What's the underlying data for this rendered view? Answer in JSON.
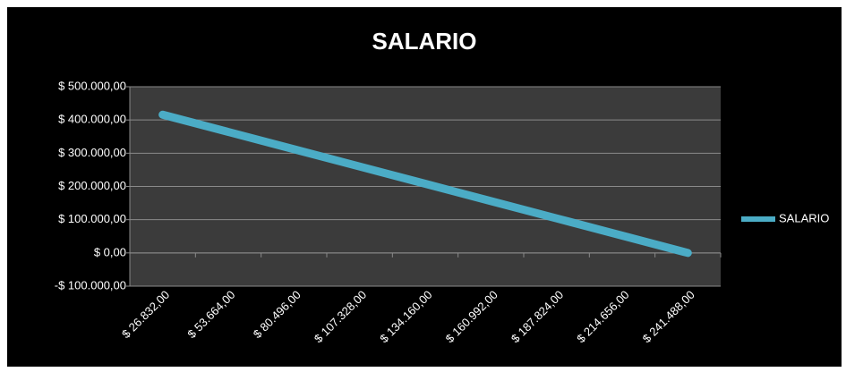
{
  "chart_data": {
    "type": "line",
    "title": "SALARIO",
    "categories": [
      "$ 26.832,00",
      "$ 53.664,00",
      "$ 80.496,00",
      "$ 107.328,00",
      "$ 134.160,00",
      "$ 160.992,00",
      "$ 187.824,00",
      "$ 214.656,00",
      "$ 241.488,00"
    ],
    "series": [
      {
        "name": "SALARIO",
        "color": "#4bacc6",
        "values": [
          416000,
          364000,
          312000,
          260000,
          208000,
          156000,
          104000,
          52000,
          0
        ]
      }
    ],
    "ylim": [
      -100000,
      500000
    ],
    "yticks": [
      {
        "value": -100000,
        "label": "-$ 100.000,00"
      },
      {
        "value": 0,
        "label": "$ 0,00"
      },
      {
        "value": 100000,
        "label": "$ 100.000,00"
      },
      {
        "value": 200000,
        "label": "$ 200.000,00"
      },
      {
        "value": 300000,
        "label": "$ 300.000,00"
      },
      {
        "value": 400000,
        "label": "$ 400.000,00"
      },
      {
        "value": 500000,
        "label": "$ 500.000,00"
      }
    ],
    "grid": true,
    "legend": "right"
  }
}
